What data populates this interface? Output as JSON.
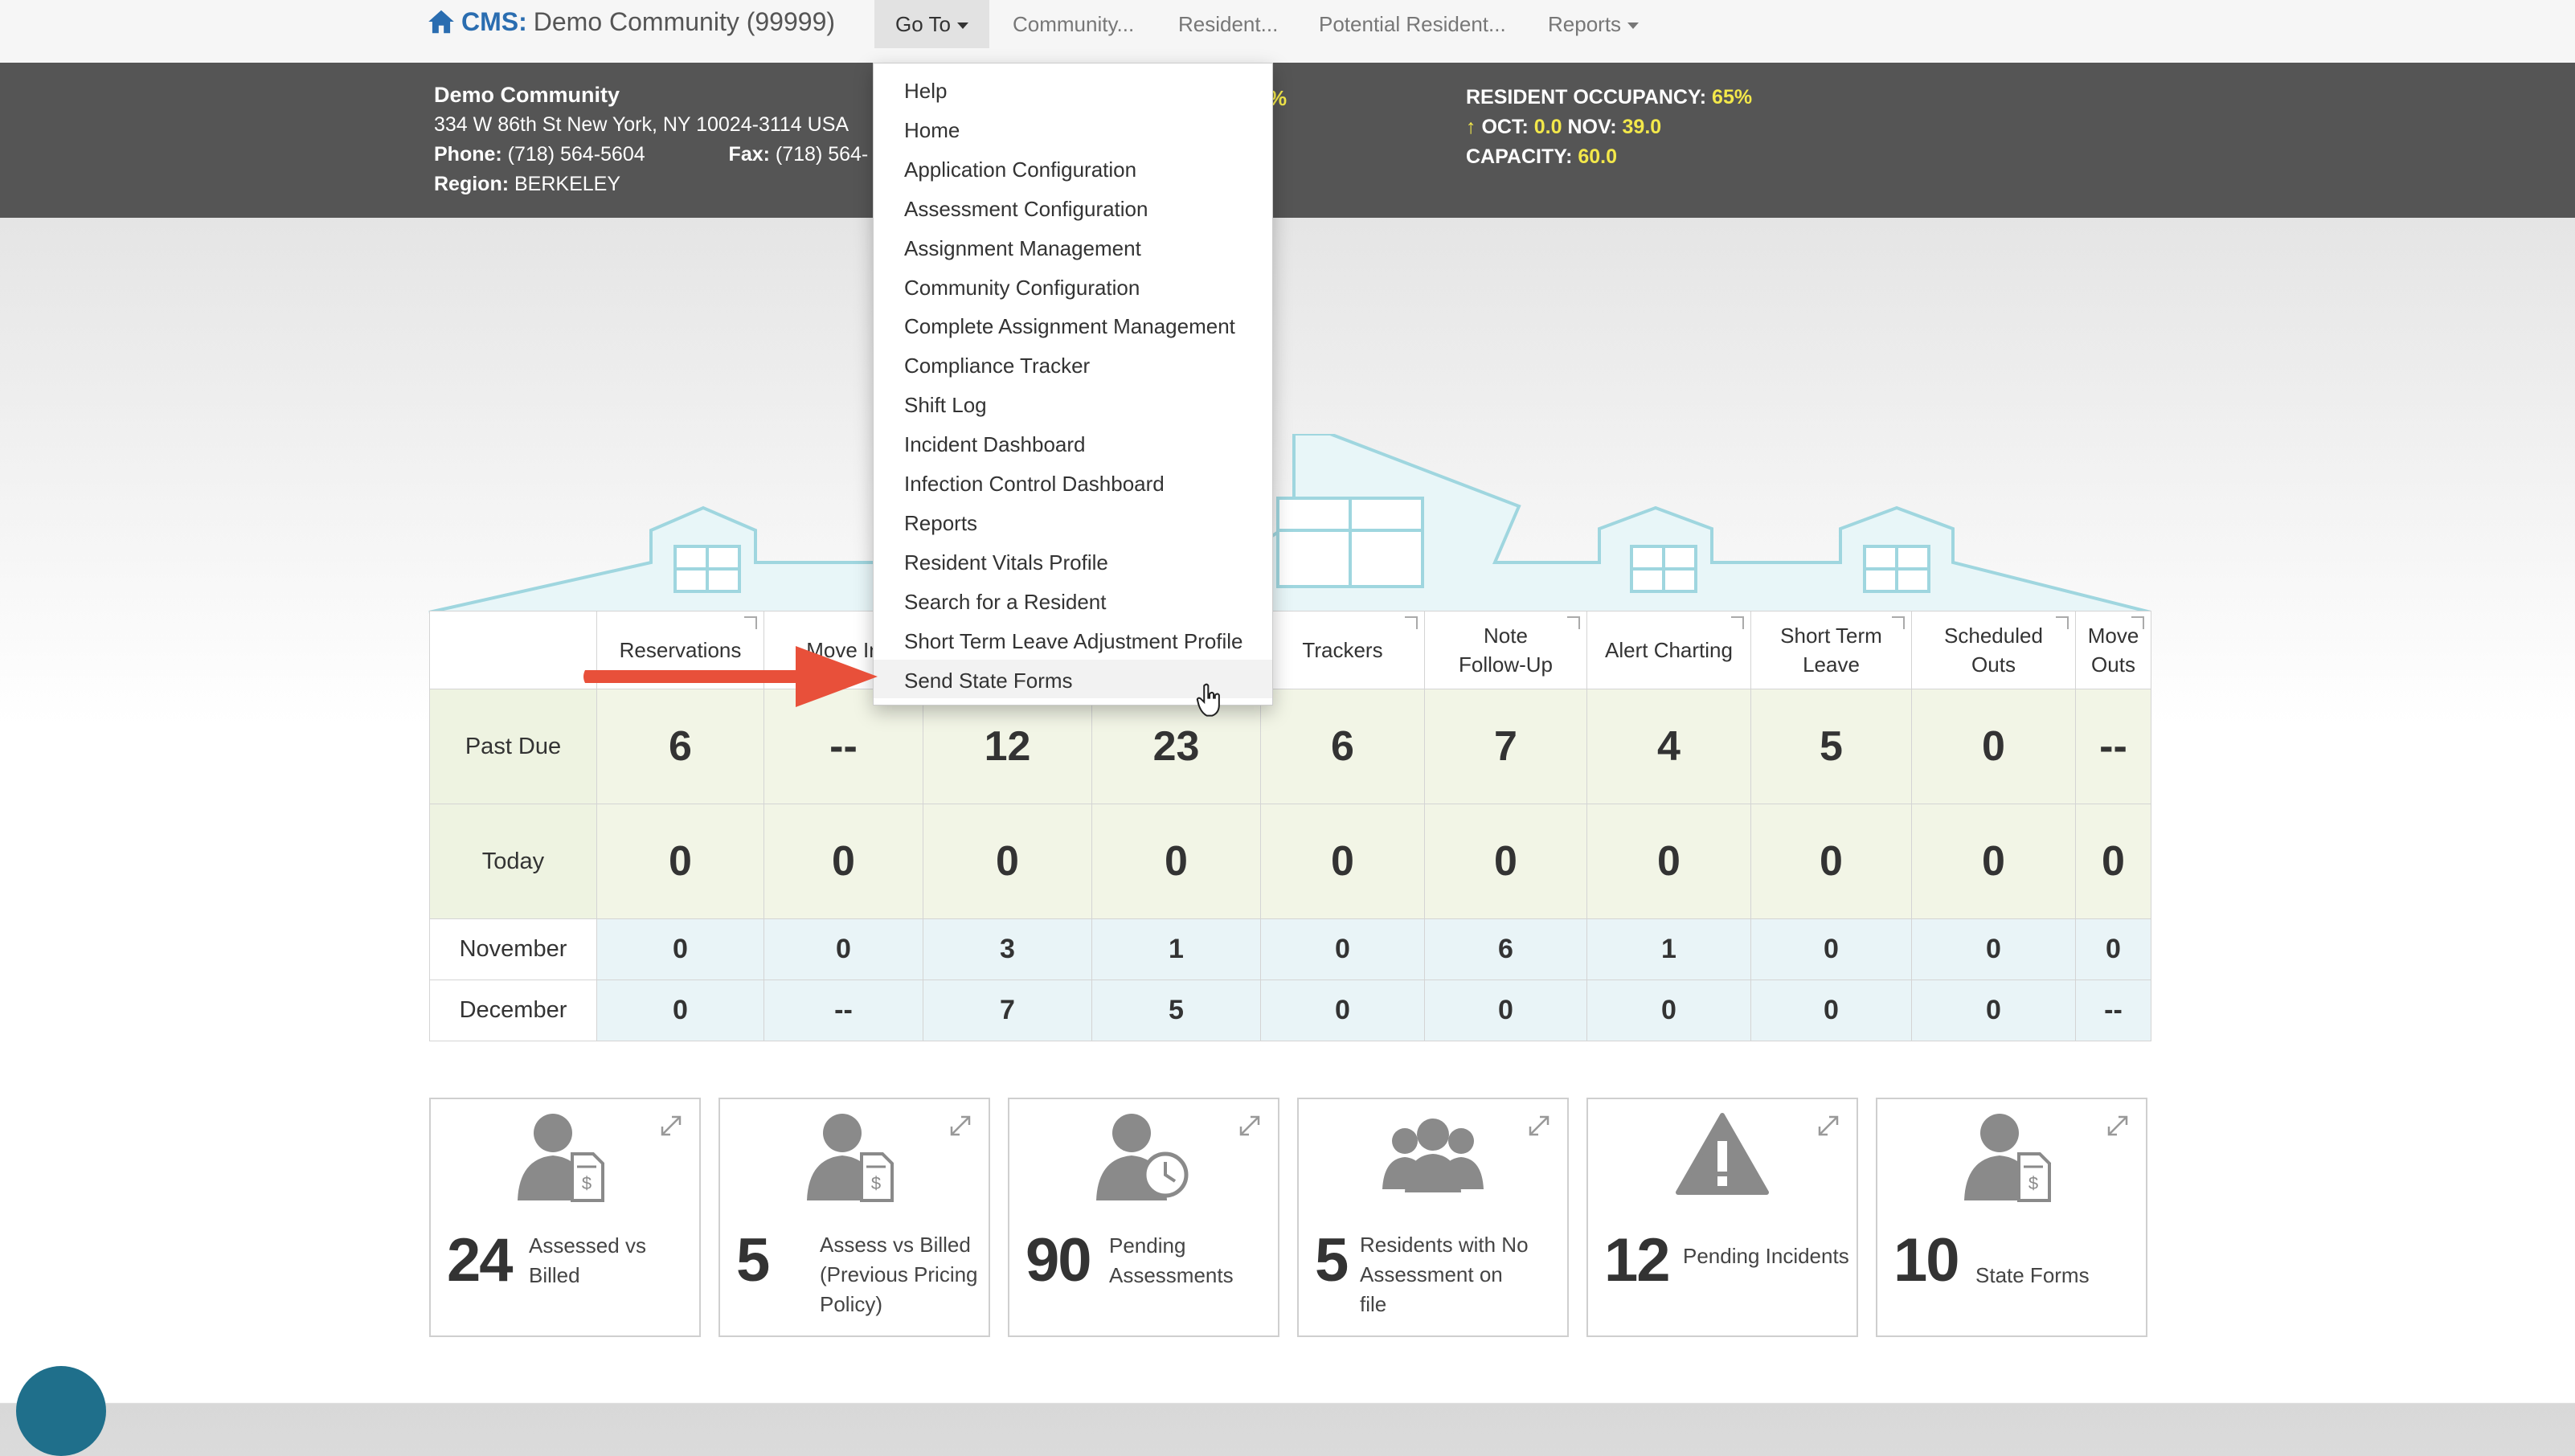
{
  "nav": {
    "brand_prefix": "CMS:",
    "brand_name": "Demo Community (99999)",
    "goto_label": "Go To",
    "community_label": "Community...",
    "resident_label": "Resident...",
    "potential_label": "Potential Resident...",
    "reports_label": "Reports"
  },
  "info": {
    "name": "Demo Community",
    "address": "334 W 86th St New York, NY 10024-3114 USA",
    "phone_label": "Phone:",
    "phone": "(718) 564-5604",
    "fax_label": "Fax:",
    "fax": "(718) 564-",
    "region_label": "Region:",
    "region": "BERKELEY",
    "pct_fragment": "%",
    "occupancy_label": "RESIDENT OCCUPANCY:",
    "occupancy": "65%",
    "oct_label": "OCT:",
    "oct": "0.0",
    "nov_label": "NOV:",
    "nov": "39.0",
    "capacity_label": "CAPACITY:",
    "capacity": "60.0"
  },
  "table": {
    "headers": [
      "Reservations",
      "Move In",
      "",
      "",
      "Trackers",
      "Note Follow-Up",
      "Alert Charting",
      "Short Term Leave",
      "Scheduled Outs",
      "Move Outs"
    ],
    "header_lines": [
      [
        "Reservations"
      ],
      [
        "Move In"
      ],
      [
        ""
      ],
      [
        ""
      ],
      [
        "Trackers"
      ],
      [
        "Note",
        "Follow-Up"
      ],
      [
        "Alert Charting"
      ],
      [
        "Short Term",
        "Leave"
      ],
      [
        "Scheduled",
        "Outs"
      ],
      [
        "Move",
        "Outs"
      ]
    ],
    "rows": [
      {
        "label": "Past Due",
        "values": [
          "6",
          "--",
          "12",
          "23",
          "6",
          "7",
          "4",
          "5",
          "0",
          "--"
        ]
      },
      {
        "label": "Today",
        "values": [
          "0",
          "0",
          "0",
          "0",
          "0",
          "0",
          "0",
          "0",
          "0",
          "0"
        ]
      },
      {
        "label": "November",
        "values": [
          "0",
          "0",
          "3",
          "1",
          "0",
          "6",
          "1",
          "0",
          "0",
          "0"
        ]
      },
      {
        "label": "December",
        "values": [
          "0",
          "--",
          "7",
          "5",
          "0",
          "0",
          "0",
          "0",
          "0",
          "--"
        ]
      }
    ]
  },
  "cards": [
    {
      "number": "24",
      "label": "Assessed vs Billed",
      "icon": "person-invoice-icon"
    },
    {
      "number": "5",
      "label": "Assess vs Billed (Previous Pricing Policy)",
      "icon": "person-invoice-icon"
    },
    {
      "number": "90",
      "label": "Pending Assessments",
      "icon": "person-clock-icon"
    },
    {
      "number": "5",
      "label": "Residents with No Assessment on file",
      "icon": "people-group-icon"
    },
    {
      "number": "12",
      "label": "Pending Incidents",
      "icon": "warning-icon"
    },
    {
      "number": "10",
      "label": "State Forms",
      "icon": "person-invoice-icon"
    }
  ],
  "dropdown": {
    "items": [
      "Help",
      "Home",
      "Application Configuration",
      "Assessment Configuration",
      "Assignment Management",
      "Community Configuration",
      "Complete Assignment Management",
      "Compliance Tracker",
      "Shift Log",
      "Incident Dashboard",
      "Infection Control Dashboard",
      "Reports",
      "Resident Vitals Profile",
      "Search for a Resident",
      "Short Term Leave Adjustment Profile",
      "Send State Forms"
    ],
    "highlighted": "Send State Forms"
  },
  "colors": {
    "brand": "#2a6db0",
    "info_bar": "#555555",
    "highlight_yellow": "#f3e84a",
    "past_due_bg": "#f2f5e6",
    "month_bg": "#e9f4f7",
    "annotation_arrow": "#e8503a"
  }
}
